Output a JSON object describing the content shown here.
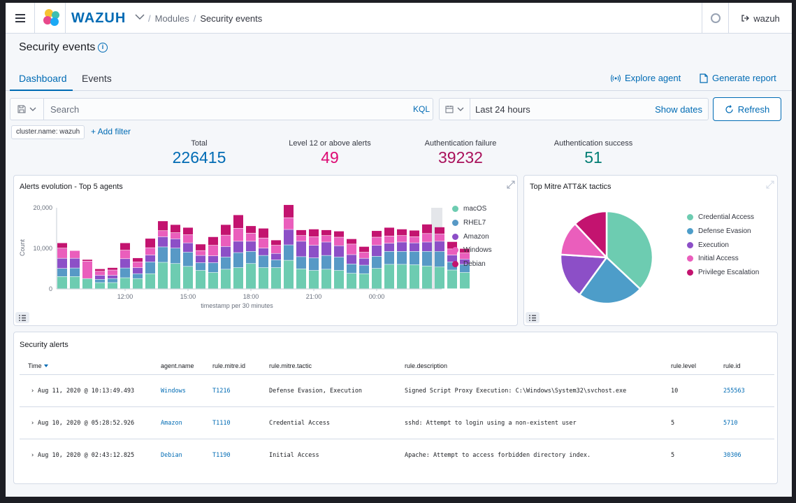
{
  "header": {
    "brand": "WAZUH",
    "breadcrumbs": [
      "Modules",
      "Security events"
    ],
    "user": "wazuh"
  },
  "page": {
    "title": "Security events"
  },
  "tabs": [
    {
      "label": "Dashboard",
      "active": true
    },
    {
      "label": "Events",
      "active": false
    }
  ],
  "actions": {
    "explore_agent": "Explore agent",
    "generate_report": "Generate report"
  },
  "search": {
    "placeholder": "Search",
    "language": "KQL"
  },
  "date": {
    "range": "Last 24 hours",
    "show_dates": "Show dates",
    "refresh": "Refresh"
  },
  "filters": {
    "pill": "cluster.name: wazuh",
    "add_filter": "+ Add filter"
  },
  "stats": [
    {
      "label": "Total",
      "value": "226415",
      "color": "#006bb4"
    },
    {
      "label": "Level 12 or above alerts",
      "value": "49",
      "color": "#dd0a73"
    },
    {
      "label": "Authentication failure",
      "value": "39232",
      "color": "#a9115b"
    },
    {
      "label": "Authentication success",
      "value": "51",
      "color": "#017d73"
    }
  ],
  "chart_data": [
    {
      "type": "bar",
      "stacked": true,
      "title": "Alerts evolution - Top 5 agents",
      "xlabel": "timestamp per 30 minutes",
      "ylabel": "Count",
      "ylim": [
        0,
        20000
      ],
      "yticks": [
        "0",
        "10,000",
        "20,000"
      ],
      "xticks": [
        "12:00",
        "15:00",
        "18:00",
        "21:00",
        "00:00"
      ],
      "legend_position": "right",
      "series": [
        {
          "name": "macOS",
          "color": "#6dccb1",
          "values": [
            3000,
            3000,
            2500,
            1500,
            1500,
            2700,
            2500,
            3700,
            6500,
            6200,
            5500,
            4500,
            4000,
            4800,
            5200,
            6200,
            5200,
            5200,
            7000,
            4900,
            4500,
            4800,
            4500,
            3800,
            3700,
            5000,
            6000,
            6000,
            5900,
            5600,
            5400,
            4600,
            4000
          ]
        },
        {
          "name": "RHEL7",
          "color": "#5799c6",
          "values": [
            2000,
            2100,
            0,
            800,
            1000,
            2400,
            1200,
            2900,
            3800,
            3800,
            3500,
            1900,
            2400,
            3000,
            3700,
            3000,
            3000,
            1900,
            3800,
            3000,
            3100,
            3400,
            3300,
            2300,
            2100,
            3000,
            3200,
            3200,
            3300,
            3600,
            3800,
            2000,
            2000
          ]
        },
        {
          "name": "Amazon",
          "color": "#8c4fc7",
          "values": [
            2500,
            2400,
            0,
            1000,
            800,
            2300,
            1500,
            1700,
            2500,
            2300,
            2300,
            1800,
            1700,
            2600,
            2800,
            2500,
            1800,
            1600,
            3800,
            3800,
            3100,
            3300,
            2800,
            2300,
            1700,
            2700,
            2000,
            2300,
            2100,
            2300,
            2500,
            1700,
            1300
          ]
        },
        {
          "name": "Windows",
          "color": "#ea5ebc",
          "values": [
            2500,
            1900,
            4300,
            1000,
            1300,
            2100,
            1400,
            1800,
            1500,
            1500,
            2000,
            1200,
            2600,
            2800,
            3200,
            2000,
            2500,
            2000,
            2900,
            1400,
            2100,
            1600,
            2100,
            2600,
            1500,
            2000,
            1800,
            1600,
            1500,
            2100,
            1800,
            1500,
            1500
          ]
        },
        {
          "name": "Debian",
          "color": "#c3136f",
          "values": [
            1300,
            0,
            400,
            600,
            600,
            1800,
            1000,
            2300,
            2400,
            2000,
            1800,
            1600,
            2100,
            2600,
            3300,
            1800,
            2400,
            1300,
            3200,
            1400,
            1900,
            1400,
            1500,
            1300,
            1400,
            1600,
            2100,
            1600,
            1600,
            2300,
            1700,
            1800,
            1100
          ]
        }
      ]
    },
    {
      "type": "pie",
      "title": "Top Mitre ATT&K tactics",
      "legend_position": "right",
      "slices": [
        {
          "name": "Credential Access",
          "value": 37,
          "color": "#6dccb1"
        },
        {
          "name": "Defense Evasion",
          "value": 23,
          "color": "#4d9dc9"
        },
        {
          "name": "Execution",
          "value": 16,
          "color": "#8c4fc7"
        },
        {
          "name": "Initial Access",
          "value": 12,
          "color": "#ea5ebc"
        },
        {
          "name": "Privilege Escalation",
          "value": 12,
          "color": "#c3136f"
        }
      ]
    }
  ],
  "alerts": {
    "title": "Security alerts",
    "columns": [
      "Time",
      "agent.name",
      "rule.mitre.id",
      "rule.mitre.tactic",
      "rule.description",
      "rule.level",
      "rule.id"
    ],
    "rows": [
      {
        "time": "Aug 11, 2020 @ 10:13:49.493",
        "agent": "Windows",
        "mitre_id": "T1216",
        "tactic": "Defense Evasion, Execution",
        "description": "Signed Script Proxy Execution: C:\\Windows\\System32\\svchost.exe",
        "level": "10",
        "rule_id": "255563"
      },
      {
        "time": "Aug 10, 2020 @ 05:28:52.926",
        "agent": "Amazon",
        "mitre_id": "T1110",
        "tactic": "Credential Access",
        "description": "sshd: Attempt to login using a non-existent user",
        "level": "5",
        "rule_id": "5710"
      },
      {
        "time": "Aug 10, 2020 @ 02:43:12.825",
        "agent": "Debian",
        "mitre_id": "T1190",
        "tactic": "Initial Access",
        "description": "Apache: Attempt to access forbidden directory index.",
        "level": "5",
        "rule_id": "30306"
      }
    ]
  }
}
